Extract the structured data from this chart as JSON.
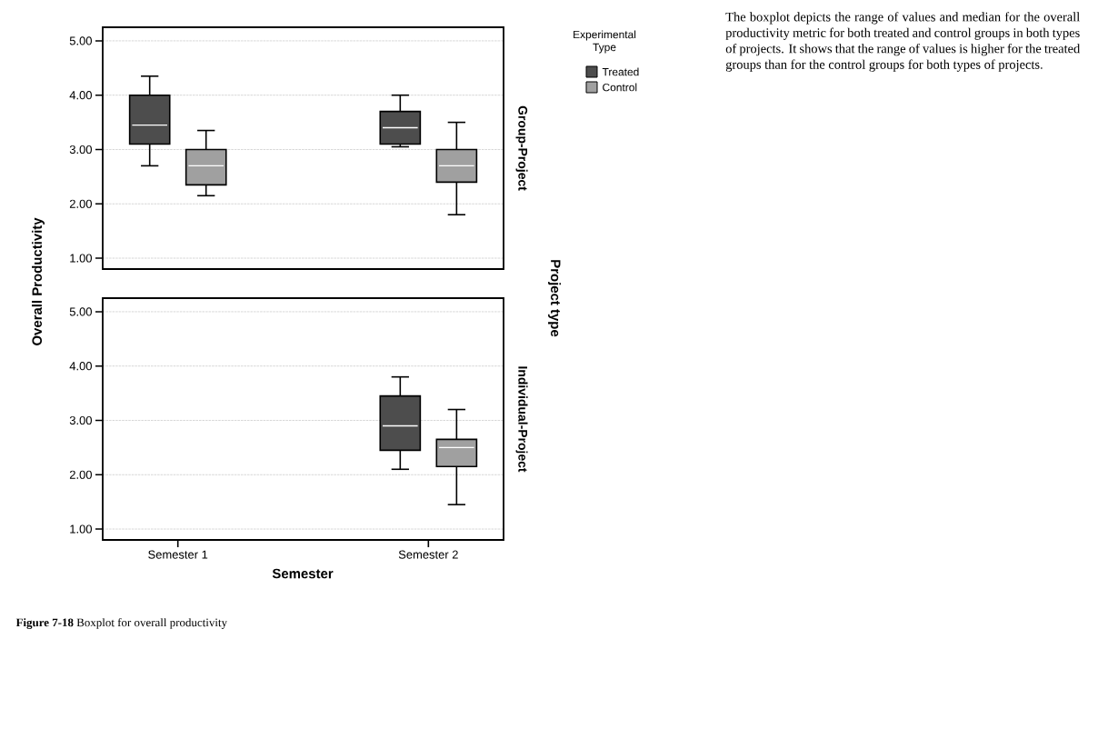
{
  "chart_data": [
    {
      "type": "box",
      "y2label": "Group-Project",
      "ylabel": "Overall Productivity",
      "legend_title": "Experimental Type",
      "annotations": [
        "Project type",
        "The boxplot depicts the range of values and median for the overall productivity metric for both treated and control groups in both types of projects. It shows that the range of values is higher for the treated groups than for the control groups for both types of projects."
      ],
      "categories": [
        null,
        null
      ],
      "series": [
        {
          "name": "Treated",
          "color": "#4d4d4d",
          "boxes": [
            {
              "low": 2.7,
              "q1": 3.1,
              "median": 3.45,
              "q3": 4.0,
              "high": 4.35
            },
            {
              "low": 3.05,
              "q1": 3.1,
              "median": 3.4,
              "q3": 3.7,
              "high": 4.0
            }
          ]
        },
        {
          "name": "Control",
          "color": "#a0a0a0",
          "boxes": [
            {
              "low": 2.15,
              "q1": 2.35,
              "median": 2.7,
              "q3": 3.0,
              "high": 3.35
            },
            {
              "low": 1.8,
              "q1": 2.4,
              "median": 2.7,
              "q3": 3.0,
              "high": 3.5
            }
          ]
        }
      ],
      "ylim": [
        0.8,
        5.25
      ],
      "yticks": [
        {
          "value": 1,
          "label": "1.00"
        },
        {
          "value": 2,
          "label": "2.00"
        },
        {
          "value": 3,
          "label": "3.00"
        },
        {
          "value": 4,
          "label": "4.00"
        },
        {
          "value": 5,
          "label": "5.00"
        }
      ],
      "grid": "y",
      "legend": "right",
      "tick_labels": "y"
    },
    {
      "type": "box",
      "y2label": "Individual-Project",
      "xlabel": "Semester",
      "annotations": [
        "**Figure 7-18** Boxplot for overall productivity"
      ],
      "categories": [
        "Semester 1",
        "Semester 2"
      ],
      "series": [
        {
          "color": "#4d4d4d",
          "boxes": [
            null,
            {
              "low": 2.1,
              "q1": 2.45,
              "median": 2.9,
              "q3": 3.45,
              "high": 3.8
            }
          ]
        },
        {
          "color": "#a0a0a0",
          "boxes": [
            null,
            {
              "low": 1.45,
              "q1": 2.15,
              "median": 2.5,
              "q3": 2.65,
              "high": 3.2
            }
          ]
        }
      ],
      "ylim": [
        0.8,
        5.25
      ],
      "yticks": [
        {
          "value": 1,
          "label": "1.00"
        },
        {
          "value": 2,
          "label": "2.00"
        },
        {
          "value": 3,
          "label": "3.00"
        },
        {
          "value": 4,
          "label": "4.00"
        },
        {
          "value": 5,
          "label": "5.00"
        }
      ],
      "grid": "y"
    }
  ]
}
